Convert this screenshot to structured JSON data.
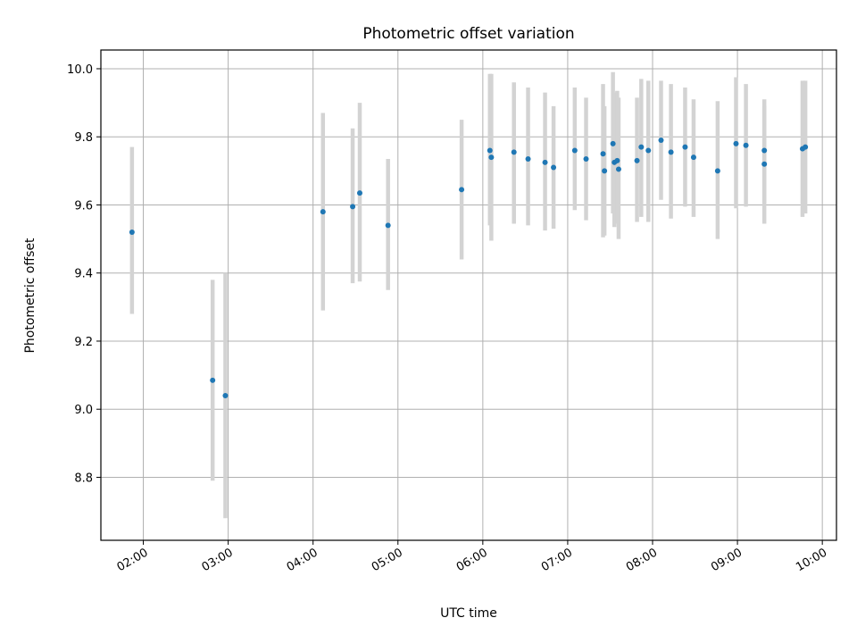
{
  "chart_data": {
    "type": "scatter",
    "title": "Photometric offset variation",
    "xlabel": "UTC time",
    "ylabel": "Photometric offset",
    "grid": true,
    "x_ticks": [
      "02:00",
      "03:00",
      "04:00",
      "05:00",
      "06:00",
      "07:00",
      "08:00",
      "09:00",
      "10:00"
    ],
    "y_ticks": [
      "8.8",
      "9.0",
      "9.2",
      "9.4",
      "9.6",
      "9.8",
      "10.0"
    ],
    "xlim": [
      "01:30",
      "10:10"
    ],
    "ylim": [
      8.615,
      10.055
    ],
    "marker_color": "#1f77b4",
    "errorbar_color": "#d3d3d3",
    "points": [
      {
        "x": "01:52",
        "y": 9.52,
        "lo": 9.28,
        "hi": 9.77
      },
      {
        "x": "02:49",
        "y": 9.085,
        "lo": 8.79,
        "hi": 9.38
      },
      {
        "x": "02:58",
        "y": 9.04,
        "lo": 8.68,
        "hi": 9.4
      },
      {
        "x": "04:07",
        "y": 9.58,
        "lo": 9.29,
        "hi": 9.87
      },
      {
        "x": "04:28",
        "y": 9.595,
        "lo": 9.37,
        "hi": 9.825
      },
      {
        "x": "04:33",
        "y": 9.635,
        "lo": 9.375,
        "hi": 9.9
      },
      {
        "x": "04:53",
        "y": 9.54,
        "lo": 9.35,
        "hi": 9.735
      },
      {
        "x": "05:45",
        "y": 9.645,
        "lo": 9.44,
        "hi": 9.85
      },
      {
        "x": "06:05",
        "y": 9.76,
        "lo": 9.54,
        "hi": 9.985
      },
      {
        "x": "06:06",
        "y": 9.74,
        "lo": 9.495,
        "hi": 9.985
      },
      {
        "x": "06:22",
        "y": 9.755,
        "lo": 9.545,
        "hi": 9.96
      },
      {
        "x": "06:32",
        "y": 9.735,
        "lo": 9.54,
        "hi": 9.945
      },
      {
        "x": "06:44",
        "y": 9.725,
        "lo": 9.525,
        "hi": 9.93
      },
      {
        "x": "06:50",
        "y": 9.71,
        "lo": 9.53,
        "hi": 9.89
      },
      {
        "x": "07:05",
        "y": 9.76,
        "lo": 9.585,
        "hi": 9.945
      },
      {
        "x": "07:13",
        "y": 9.735,
        "lo": 9.555,
        "hi": 9.915
      },
      {
        "x": "07:25",
        "y": 9.75,
        "lo": 9.505,
        "hi": 9.955
      },
      {
        "x": "07:26",
        "y": 9.7,
        "lo": 9.51,
        "hi": 9.89
      },
      {
        "x": "07:32",
        "y": 9.78,
        "lo": 9.575,
        "hi": 9.99
      },
      {
        "x": "07:33",
        "y": 9.725,
        "lo": 9.535,
        "hi": 9.93
      },
      {
        "x": "07:35",
        "y": 9.73,
        "lo": 9.545,
        "hi": 9.935
      },
      {
        "x": "07:36",
        "y": 9.705,
        "lo": 9.5,
        "hi": 9.915
      },
      {
        "x": "07:49",
        "y": 9.73,
        "lo": 9.55,
        "hi": 9.915
      },
      {
        "x": "07:52",
        "y": 9.77,
        "lo": 9.565,
        "hi": 9.97
      },
      {
        "x": "07:57",
        "y": 9.76,
        "lo": 9.55,
        "hi": 9.965
      },
      {
        "x": "08:06",
        "y": 9.79,
        "lo": 9.615,
        "hi": 9.965
      },
      {
        "x": "08:13",
        "y": 9.755,
        "lo": 9.56,
        "hi": 9.955
      },
      {
        "x": "08:23",
        "y": 9.77,
        "lo": 9.595,
        "hi": 9.945
      },
      {
        "x": "08:29",
        "y": 9.74,
        "lo": 9.565,
        "hi": 9.91
      },
      {
        "x": "08:46",
        "y": 9.7,
        "lo": 9.5,
        "hi": 9.905
      },
      {
        "x": "08:59",
        "y": 9.78,
        "lo": 9.59,
        "hi": 9.975
      },
      {
        "x": "09:06",
        "y": 9.775,
        "lo": 9.595,
        "hi": 9.955
      },
      {
        "x": "09:19",
        "y": 9.72,
        "lo": 9.545,
        "hi": 9.89
      },
      {
        "x": "09:19",
        "y": 9.76,
        "lo": 9.605,
        "hi": 9.91
      },
      {
        "x": "09:46",
        "y": 9.765,
        "lo": 9.565,
        "hi": 9.965
      },
      {
        "x": "09:48",
        "y": 9.77,
        "lo": 9.575,
        "hi": 9.965
      }
    ]
  }
}
